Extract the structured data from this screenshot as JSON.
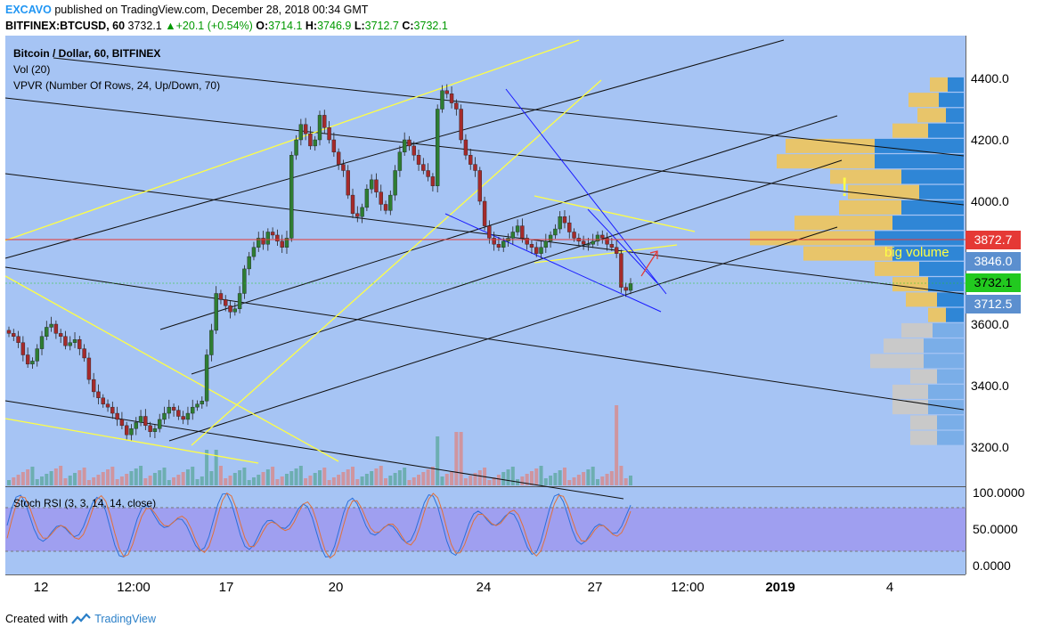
{
  "header": {
    "user": "EXCAVO",
    "published": "published on TradingView.com, December 28, 2018 00:34 GMT",
    "symbol": "BITFINEX:BTCUSD, 60",
    "last": "3732.1",
    "change": "+20.1 (+0.54%)",
    "o_label": "O:",
    "o": "3714.1",
    "h_label": "H:",
    "h": "3746.9",
    "l_label": "L:",
    "l": "3712.7",
    "c_label": "C:",
    "c": "3732.1"
  },
  "indicators": {
    "title": "Bitcoin / Dollar, 60, BITFINEX",
    "vol": "Vol (20)",
    "vpvr": "VPVR (Number Of Rows, 24, Up/Down, 70)",
    "stoch": "Stoch RSI (3, 3, 14, 14, close)"
  },
  "price_axis": [
    "4400.0",
    "4200.0",
    "4000.0",
    "3600.0",
    "3400.0",
    "3200.0"
  ],
  "price_tags": {
    "resistance": "3872.7",
    "mid": "3846.0",
    "last": "3732.1",
    "low": "3712.5"
  },
  "stoch_axis": [
    "100.0000",
    "50.0000",
    "0.0000"
  ],
  "time_axis": [
    "12",
    "12:00",
    "17",
    "20",
    "24",
    "27",
    "12:00",
    "2019",
    "4"
  ],
  "annotations": {
    "exclaim": "!",
    "big_volume": "big volume"
  },
  "footer": {
    "created_with": "Created with",
    "brand": "TradingView"
  },
  "colors": {
    "chart_bg": "#a6c4f4",
    "stoch_band": "#9f9ff0",
    "up_candle": "#2e7d32",
    "down_candle": "#a52a2a",
    "resistance_line": "#e53935",
    "trend_yellow": "#ffff44",
    "trend_blue": "#1a1aff",
    "last_tag": "#22c91f",
    "muted_tag": "#5b8fcf"
  },
  "chart_data": {
    "type": "candlestick",
    "title": "Bitcoin / Dollar, 60, BITFINEX",
    "ylim": [
      3100,
      4500
    ],
    "closes": [
      3570,
      3560,
      3540,
      3500,
      3470,
      3480,
      3520,
      3560,
      3590,
      3600,
      3570,
      3560,
      3530,
      3540,
      3550,
      3520,
      3490,
      3420,
      3380,
      3360,
      3340,
      3330,
      3310,
      3290,
      3270,
      3240,
      3260,
      3280,
      3300,
      3270,
      3250,
      3260,
      3290,
      3310,
      3330,
      3320,
      3300,
      3290,
      3310,
      3330,
      3340,
      3350,
      3500,
      3580,
      3700,
      3680,
      3660,
      3640,
      3650,
      3700,
      3780,
      3820,
      3850,
      3880,
      3860,
      3900,
      3890,
      3870,
      3850,
      3880,
      4150,
      4200,
      4250,
      4220,
      4180,
      4200,
      4280,
      4240,
      4200,
      4160,
      4120,
      4100,
      4020,
      3960,
      3950,
      3980,
      4040,
      4070,
      4030,
      3990,
      3970,
      4020,
      4100,
      4160,
      4200,
      4180,
      4150,
      4120,
      4100,
      4080,
      4050,
      4300,
      4360,
      4350,
      4320,
      4300,
      4200,
      4150,
      4120,
      4100,
      4000,
      3920,
      3880,
      3860,
      3850,
      3870,
      3880,
      3900,
      3920,
      3880,
      3860,
      3850,
      3830,
      3850,
      3870,
      3890,
      3910,
      3950,
      3930,
      3900,
      3880,
      3870,
      3860,
      3860,
      3870,
      3890,
      3880,
      3860,
      3850,
      3830,
      3720,
      3710,
      3732
    ]
  }
}
